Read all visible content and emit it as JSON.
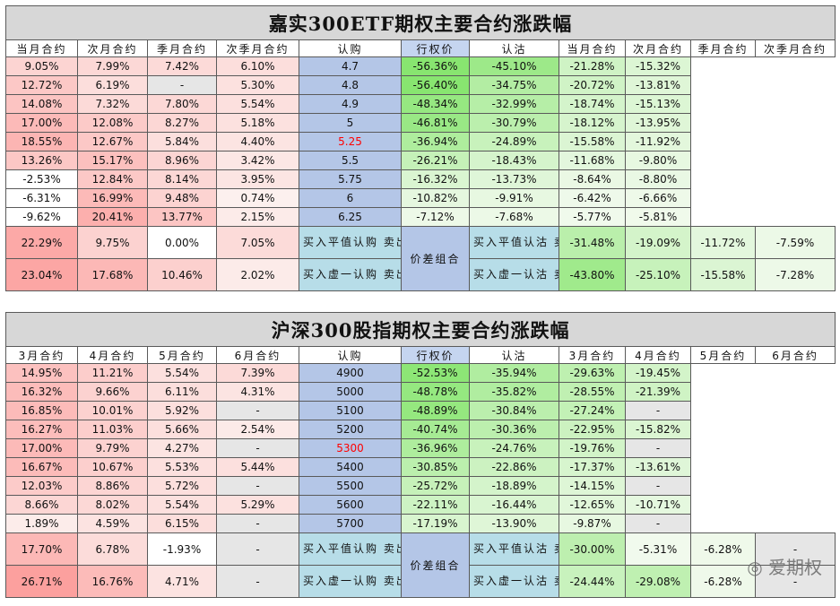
{
  "etf": {
    "title": "嘉实300ETF期权主要合约涨跌幅",
    "call_headers": [
      "当月合约",
      "次月合约",
      "季月合约",
      "次季月合约"
    ],
    "strike_header": "行权价",
    "put_headers": [
      "当月合约",
      "次月合约",
      "季月合约",
      "次季月合约"
    ],
    "call_label": "认购",
    "put_label": "认沽",
    "spread_label": "价差组合",
    "rows": [
      {
        "c": [
          "9.05%",
          "7.99%",
          "7.42%",
          "6.10%"
        ],
        "k": "4.7",
        "p": [
          "-56.36%",
          "-45.10%",
          "-21.28%",
          "-15.32%"
        ]
      },
      {
        "c": [
          "12.72%",
          "6.19%",
          "-",
          "5.30%"
        ],
        "k": "4.8",
        "p": [
          "-56.40%",
          "-34.75%",
          "-20.72%",
          "-13.81%"
        ]
      },
      {
        "c": [
          "14.08%",
          "7.32%",
          "7.80%",
          "5.54%"
        ],
        "k": "4.9",
        "p": [
          "-48.34%",
          "-32.99%",
          "-18.74%",
          "-15.13%"
        ]
      },
      {
        "c": [
          "17.00%",
          "12.08%",
          "8.27%",
          "5.18%"
        ],
        "k": "5",
        "p": [
          "-46.81%",
          "-30.79%",
          "-18.12%",
          "-13.95%"
        ]
      },
      {
        "c": [
          "18.55%",
          "12.67%",
          "5.84%",
          "4.40%"
        ],
        "k": "5.25",
        "p": [
          "-36.94%",
          "-24.89%",
          "-15.58%",
          "-11.92%"
        ]
      },
      {
        "c": [
          "13.26%",
          "15.17%",
          "8.96%",
          "3.42%"
        ],
        "k": "5.5",
        "p": [
          "-26.21%",
          "-18.43%",
          "-11.68%",
          "-9.80%"
        ]
      },
      {
        "c": [
          "-2.53%",
          "12.84%",
          "8.14%",
          "3.95%"
        ],
        "k": "5.75",
        "p": [
          "-16.32%",
          "-13.73%",
          "-8.64%",
          "-8.80%"
        ]
      },
      {
        "c": [
          "-6.31%",
          "16.99%",
          "9.48%",
          "0.74%"
        ],
        "k": "6",
        "p": [
          "-10.82%",
          "-9.91%",
          "-6.42%",
          "-6.66%"
        ]
      },
      {
        "c": [
          "-9.62%",
          "20.41%",
          "13.77%",
          "2.15%"
        ],
        "k": "6.25",
        "p": [
          "-7.12%",
          "-7.68%",
          "-5.77%",
          "-5.81%"
        ]
      }
    ],
    "spreads": [
      {
        "c": [
          "22.29%",
          "9.75%",
          "0.00%",
          "7.05%"
        ],
        "call_name": "买入平值认购 卖出虚一认购",
        "put_name": "买入平值认沽 卖出虚一认沽",
        "p": [
          "-31.48%",
          "-19.09%",
          "-11.72%",
          "-7.59%"
        ]
      },
      {
        "c": [
          "23.04%",
          "17.68%",
          "10.46%",
          "2.02%"
        ],
        "call_name": "买入虚一认购 卖出虚二认购",
        "put_name": "买入虚一认沽 卖出虚二认沽",
        "p": [
          "-43.80%",
          "-25.10%",
          "-15.58%",
          "-7.28%"
        ]
      }
    ]
  },
  "index": {
    "title": "沪深300股指期权主要合约涨跌幅",
    "call_headers": [
      "3月合约",
      "4月合约",
      "5月合约",
      "6月合约"
    ],
    "strike_header": "行权价",
    "put_headers": [
      "3月合约",
      "4月合约",
      "5月合约",
      "6月合约"
    ],
    "call_label": "认购",
    "put_label": "认沽",
    "spread_label": "价差组合",
    "rows": [
      {
        "c": [
          "14.95%",
          "11.21%",
          "5.54%",
          "7.39%"
        ],
        "k": "4900",
        "p": [
          "-52.53%",
          "-35.94%",
          "-29.63%",
          "-19.45%"
        ]
      },
      {
        "c": [
          "16.32%",
          "9.66%",
          "6.11%",
          "4.31%"
        ],
        "k": "5000",
        "p": [
          "-48.78%",
          "-35.82%",
          "-28.55%",
          "-21.39%"
        ]
      },
      {
        "c": [
          "16.85%",
          "10.01%",
          "5.92%",
          "-"
        ],
        "k": "5100",
        "p": [
          "-48.89%",
          "-30.84%",
          "-27.24%",
          "-"
        ]
      },
      {
        "c": [
          "16.27%",
          "11.03%",
          "5.66%",
          "2.54%"
        ],
        "k": "5200",
        "p": [
          "-40.74%",
          "-30.36%",
          "-22.95%",
          "-15.82%"
        ]
      },
      {
        "c": [
          "17.00%",
          "9.79%",
          "4.27%",
          "-"
        ],
        "k": "5300",
        "p": [
          "-36.96%",
          "-24.76%",
          "-19.76%",
          "-"
        ]
      },
      {
        "c": [
          "16.67%",
          "10.67%",
          "5.53%",
          "5.44%"
        ],
        "k": "5400",
        "p": [
          "-30.85%",
          "-22.86%",
          "-17.37%",
          "-13.61%"
        ]
      },
      {
        "c": [
          "12.03%",
          "8.86%",
          "5.72%",
          "-"
        ],
        "k": "5500",
        "p": [
          "-25.72%",
          "-18.89%",
          "-14.15%",
          "-"
        ]
      },
      {
        "c": [
          "8.66%",
          "8.02%",
          "5.54%",
          "5.29%"
        ],
        "k": "5600",
        "p": [
          "-22.11%",
          "-16.44%",
          "-12.65%",
          "-10.71%"
        ]
      },
      {
        "c": [
          "1.89%",
          "4.59%",
          "6.15%",
          "-"
        ],
        "k": "5700",
        "p": [
          "-17.19%",
          "-13.90%",
          "-9.87%",
          "-"
        ]
      }
    ],
    "spreads": [
      {
        "c": [
          "17.70%",
          "6.78%",
          "-1.93%",
          "-"
        ],
        "call_name": "买入平值认购 卖出虚一认购",
        "put_name": "买入平值认沽 卖出虚一认沽",
        "p": [
          "-30.00%",
          "-5.31%",
          "-6.28%",
          "-"
        ]
      },
      {
        "c": [
          "26.71%",
          "16.76%",
          "4.71%",
          "-"
        ],
        "call_name": "买入虚一认购 卖出虚二认购",
        "put_name": "买入虚一认沽 卖出虚二认沽",
        "p": [
          "-24.44%",
          "-29.08%",
          "-6.28%",
          "-"
        ]
      }
    ]
  },
  "watermark": "爱期权"
}
